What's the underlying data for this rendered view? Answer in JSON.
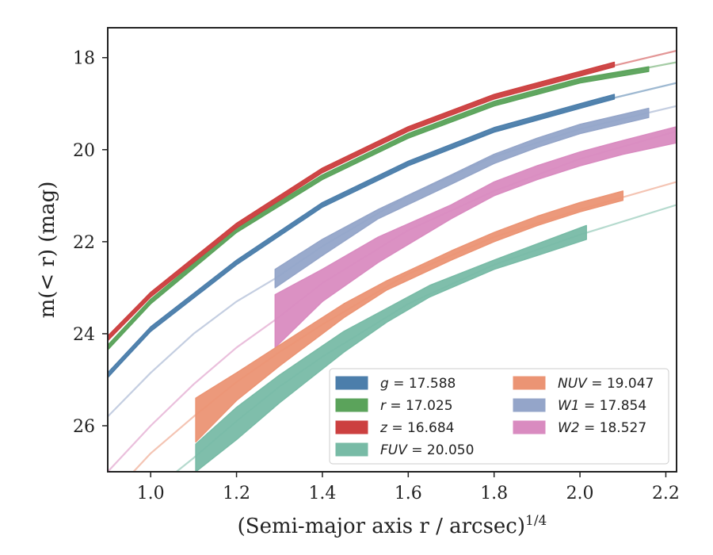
{
  "chart_data": {
    "type": "line",
    "xlabel": "(Semi-major axis r / arcsec)",
    "xlabel_sup": "1/4",
    "ylabel": "m(< r) (mag)",
    "xlim": [
      0.9,
      2.225
    ],
    "ylim": [
      27.0,
      17.35
    ],
    "y_inverted": true,
    "x_ticks": [
      "1.0",
      "1.2",
      "1.4",
      "1.6",
      "1.8",
      "2.0",
      "2.2"
    ],
    "y_ticks": [
      "18",
      "20",
      "22",
      "24",
      "26"
    ],
    "legend_position": "lower-right",
    "series": [
      {
        "name": "g",
        "legend": "g = 17.588",
        "color": "#4c7eab",
        "extrap": [
          [
            0.9,
            24.95
          ],
          [
            1.0,
            23.9
          ],
          [
            1.2,
            22.45
          ],
          [
            1.4,
            21.2
          ],
          [
            1.6,
            20.3
          ],
          [
            1.8,
            19.6
          ],
          [
            2.0,
            19.05
          ],
          [
            2.225,
            18.55
          ]
        ],
        "band": [
          [
            0.9,
            24.95,
            24.85
          ],
          [
            1.0,
            23.95,
            23.85
          ],
          [
            1.2,
            22.5,
            22.4
          ],
          [
            1.4,
            21.25,
            21.15
          ],
          [
            1.6,
            20.35,
            20.25
          ],
          [
            1.8,
            19.62,
            19.52
          ],
          [
            2.0,
            19.1,
            19.0
          ],
          [
            2.08,
            18.9,
            18.8
          ]
        ]
      },
      {
        "name": "r",
        "legend": "r = 17.025",
        "color": "#5ba35b",
        "extrap": [
          [
            0.9,
            24.3
          ],
          [
            1.0,
            23.3
          ],
          [
            1.2,
            21.75
          ],
          [
            1.4,
            20.6
          ],
          [
            1.6,
            19.7
          ],
          [
            1.8,
            19.0
          ],
          [
            2.0,
            18.5
          ],
          [
            2.225,
            18.1
          ]
        ],
        "band": [
          [
            0.9,
            24.35,
            24.25
          ],
          [
            1.0,
            23.35,
            23.25
          ],
          [
            1.2,
            21.8,
            21.7
          ],
          [
            1.4,
            20.65,
            20.55
          ],
          [
            1.6,
            19.75,
            19.65
          ],
          [
            1.8,
            19.05,
            18.95
          ],
          [
            2.0,
            18.55,
            18.45
          ],
          [
            2.16,
            18.3,
            18.2
          ]
        ]
      },
      {
        "name": "z",
        "legend": "z = 16.684",
        "color": "#cc4040",
        "extrap": [
          [
            0.9,
            24.1
          ],
          [
            1.0,
            23.15
          ],
          [
            1.2,
            21.65
          ],
          [
            1.4,
            20.45
          ],
          [
            1.6,
            19.55
          ],
          [
            1.8,
            18.85
          ],
          [
            2.0,
            18.35
          ],
          [
            2.225,
            17.85
          ]
        ],
        "band": [
          [
            0.9,
            24.15,
            24.05
          ],
          [
            1.0,
            23.2,
            23.1
          ],
          [
            1.2,
            21.7,
            21.6
          ],
          [
            1.4,
            20.5,
            20.4
          ],
          [
            1.6,
            19.6,
            19.5
          ],
          [
            1.8,
            18.9,
            18.8
          ],
          [
            2.0,
            18.4,
            18.3
          ],
          [
            2.08,
            18.2,
            18.1
          ]
        ]
      },
      {
        "name": "W1",
        "legend": "W1 = 17.854",
        "color": "#94a5c9",
        "extrap": [
          [
            0.9,
            25.8
          ],
          [
            1.0,
            24.85
          ],
          [
            1.1,
            24.0
          ],
          [
            1.2,
            23.3
          ],
          [
            1.29,
            22.8
          ],
          [
            1.4,
            22.1
          ],
          [
            1.6,
            21.0
          ],
          [
            1.8,
            20.15
          ],
          [
            2.0,
            19.55
          ],
          [
            2.225,
            19.05
          ]
        ],
        "band": [
          [
            1.29,
            23.0,
            22.6
          ],
          [
            1.4,
            22.3,
            21.95
          ],
          [
            1.53,
            21.5,
            21.3
          ],
          [
            1.7,
            20.75,
            20.55
          ],
          [
            1.8,
            20.3,
            20.1
          ],
          [
            1.9,
            19.95,
            19.75
          ],
          [
            2.0,
            19.65,
            19.45
          ],
          [
            2.16,
            19.3,
            19.1
          ]
        ]
      },
      {
        "name": "W2",
        "legend": "W2 = 18.527",
        "color": "#d98bc0",
        "extrap": [
          [
            0.9,
            27.0
          ],
          [
            1.0,
            26.0
          ],
          [
            1.1,
            25.1
          ],
          [
            1.2,
            24.3
          ],
          [
            1.29,
            23.7
          ],
          [
            1.4,
            22.9
          ],
          [
            1.6,
            21.75
          ],
          [
            1.8,
            20.9
          ],
          [
            2.0,
            20.2
          ],
          [
            2.225,
            19.6
          ]
        ],
        "band": [
          [
            1.29,
            24.3,
            23.15
          ],
          [
            1.4,
            23.3,
            22.6
          ],
          [
            1.53,
            22.45,
            21.9
          ],
          [
            1.7,
            21.5,
            21.2
          ],
          [
            1.8,
            21.0,
            20.7
          ],
          [
            1.9,
            20.65,
            20.35
          ],
          [
            2.0,
            20.35,
            20.05
          ],
          [
            2.1,
            20.1,
            19.8
          ],
          [
            2.225,
            19.85,
            19.5
          ]
        ]
      },
      {
        "name": "NUV",
        "legend": "NUV = 19.047",
        "color": "#eb9474",
        "extrap": [
          [
            0.96,
            27.0
          ],
          [
            1.0,
            26.6
          ],
          [
            1.1,
            25.8
          ],
          [
            1.2,
            25.05
          ],
          [
            1.3,
            24.4
          ],
          [
            1.4,
            23.8
          ],
          [
            1.6,
            22.7
          ],
          [
            1.8,
            21.9
          ],
          [
            2.0,
            21.3
          ],
          [
            2.225,
            20.7
          ]
        ],
        "band": [
          [
            1.105,
            26.35,
            25.4
          ],
          [
            1.2,
            25.45,
            24.85
          ],
          [
            1.3,
            24.7,
            24.25
          ],
          [
            1.45,
            23.65,
            23.35
          ],
          [
            1.55,
            23.05,
            22.85
          ],
          [
            1.7,
            22.4,
            22.2
          ],
          [
            1.8,
            22.0,
            21.8
          ],
          [
            1.9,
            21.65,
            21.45
          ],
          [
            2.0,
            21.35,
            21.15
          ],
          [
            2.1,
            21.1,
            20.9
          ]
        ]
      },
      {
        "name": "FUV",
        "legend": "FUV = 20.050",
        "color": "#78bba6",
        "extrap": [
          [
            1.06,
            27.0
          ],
          [
            1.1,
            26.7
          ],
          [
            1.2,
            25.9
          ],
          [
            1.3,
            25.15
          ],
          [
            1.4,
            24.5
          ],
          [
            1.6,
            23.35
          ],
          [
            1.8,
            22.5
          ],
          [
            2.0,
            21.85
          ],
          [
            2.225,
            21.2
          ]
        ],
        "band": [
          [
            1.105,
            27.0,
            26.4
          ],
          [
            1.2,
            26.3,
            25.6
          ],
          [
            1.3,
            25.5,
            24.9
          ],
          [
            1.45,
            24.4,
            23.95
          ],
          [
            1.55,
            23.75,
            23.45
          ],
          [
            1.65,
            23.2,
            22.95
          ],
          [
            1.8,
            22.6,
            22.4
          ],
          [
            1.9,
            22.3,
            22.05
          ],
          [
            2.015,
            21.95,
            21.65
          ]
        ]
      }
    ],
    "legend_columns": [
      [
        "g",
        "r",
        "z",
        "FUV"
      ],
      [
        "NUV",
        "W1",
        "W2"
      ]
    ]
  }
}
